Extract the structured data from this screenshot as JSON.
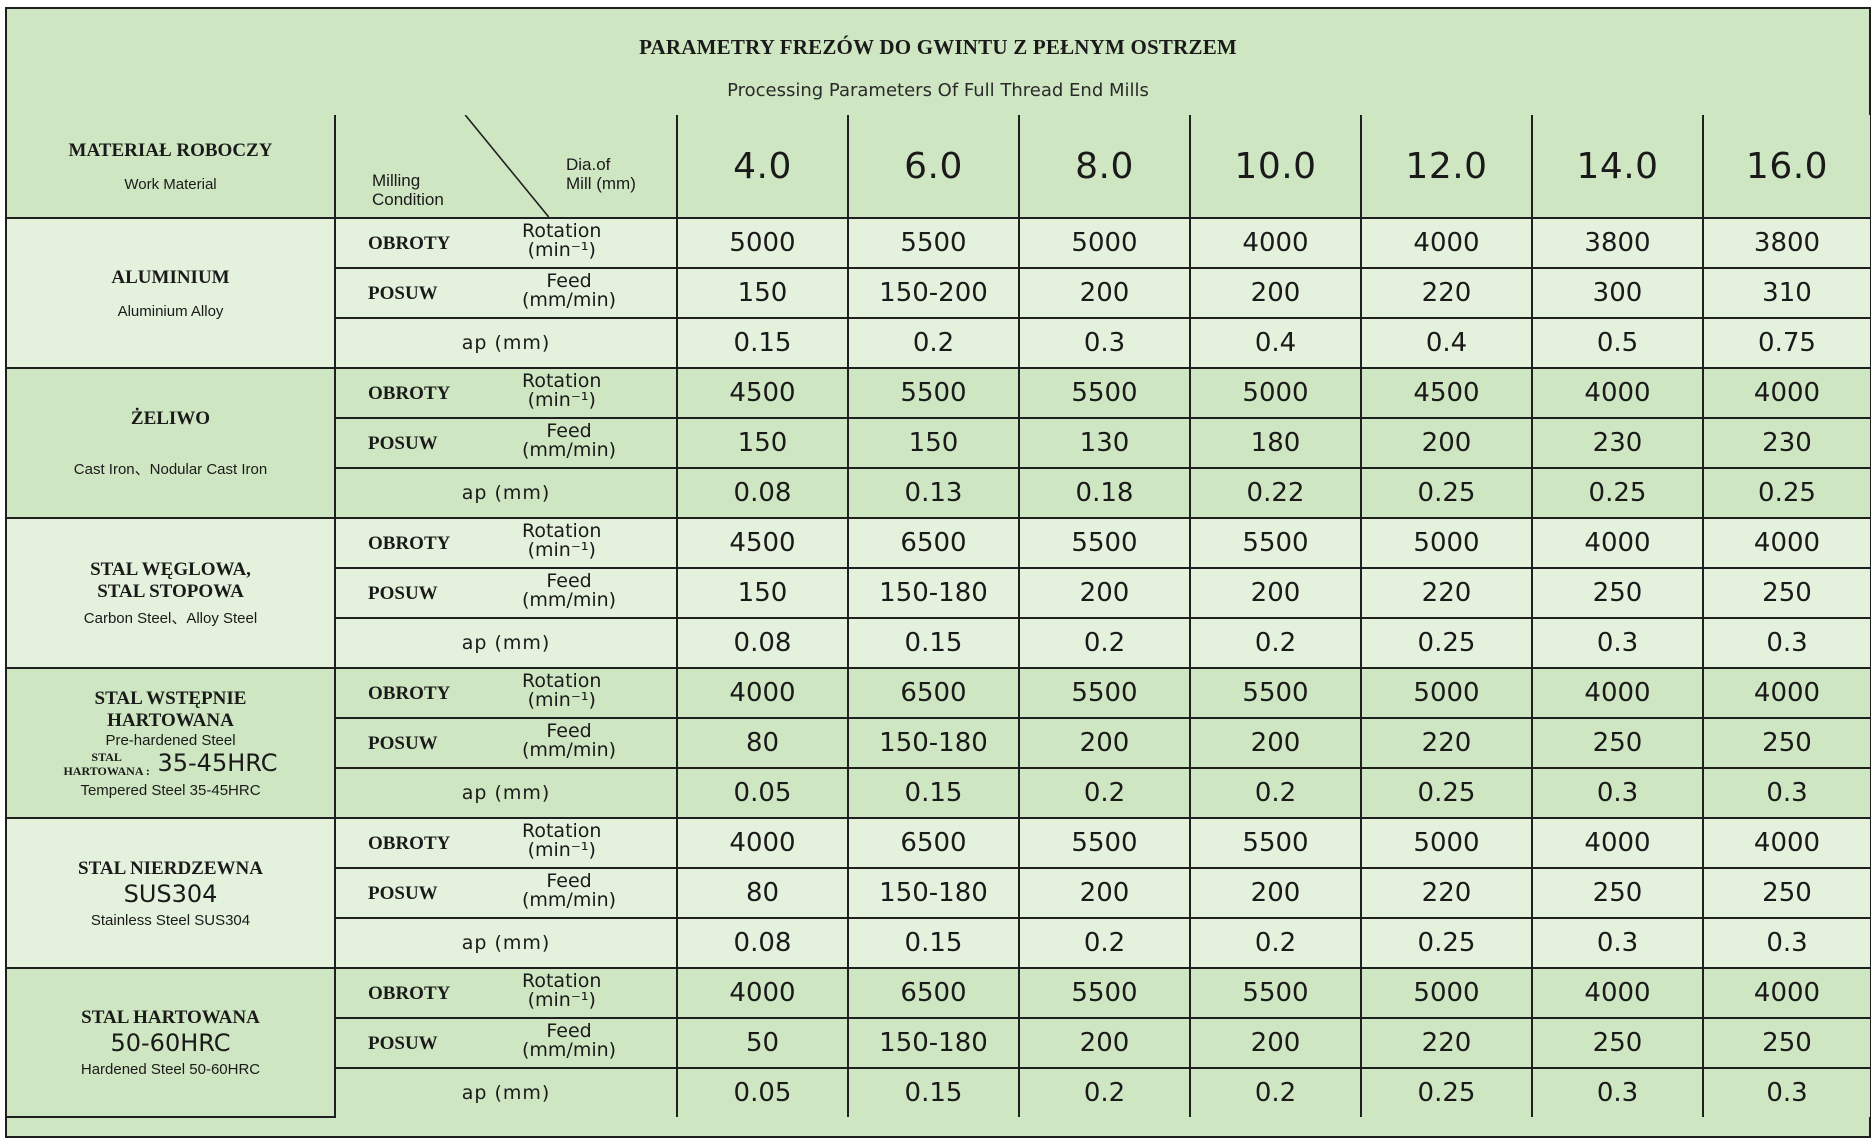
{
  "title": "PARAMETRY FREZÓW DO GWINTU Z PEŁNYM OSTRZEM",
  "subtitle": "Processing Parameters Of Full Thread End Mills",
  "header": {
    "material_pl": "MATERIAŁ ROBOCZY",
    "material_en": "Work Material",
    "condition_label_1": "Milling",
    "condition_label_2": "Condition",
    "dia_label_1": "Dia.of",
    "dia_label_2": "Mill (mm)",
    "diameters": [
      "4.0",
      "6.0",
      "8.0",
      "10.0",
      "12.0",
      "14.0",
      "16.0"
    ]
  },
  "params": {
    "rotation_pl": "OBROTY",
    "rotation_en_1": "Rotation",
    "rotation_en_2": "(min⁻¹)",
    "feed_pl": "POSUW",
    "feed_en_1": "Feed",
    "feed_en_2": "(mm/min)",
    "ap": "ap (mm)"
  },
  "materials": [
    {
      "name_pl": "ALUMINIUM",
      "name_pl_2": "",
      "big": "",
      "name_en": "Aluminium Alloy",
      "rotation": [
        "5000",
        "5500",
        "5000",
        "4000",
        "4000",
        "3800",
        "3800"
      ],
      "feed": [
        "150",
        "150-200",
        "200",
        "200",
        "220",
        "300",
        "310"
      ],
      "ap": [
        "0.15",
        "0.2",
        "0.3",
        "0.4",
        "0.4",
        "0.5",
        "0.75"
      ]
    },
    {
      "name_pl": "ŻELIWO",
      "name_pl_2": "",
      "big": "",
      "name_en": "Cast Iron、Nodular Cast Iron",
      "rotation": [
        "4500",
        "5500",
        "5500",
        "5000",
        "4500",
        "4000",
        "4000"
      ],
      "feed": [
        "150",
        "150",
        "130",
        "180",
        "200",
        "230",
        "230"
      ],
      "ap": [
        "0.08",
        "0.13",
        "0.18",
        "0.22",
        "0.25",
        "0.25",
        "0.25"
      ]
    },
    {
      "name_pl": "STAL WĘGLOWA,",
      "name_pl_2": "STAL STOPOWA",
      "big": "",
      "name_en": "Carbon Steel、Alloy Steel",
      "rotation": [
        "4500",
        "6500",
        "5500",
        "5500",
        "5000",
        "4000",
        "4000"
      ],
      "feed": [
        "150",
        "150-180",
        "200",
        "200",
        "220",
        "250",
        "250"
      ],
      "ap": [
        "0.08",
        "0.15",
        "0.2",
        "0.2",
        "0.25",
        "0.3",
        "0.3"
      ]
    },
    {
      "name_pl": "STAL WSTĘPNIE",
      "name_pl_2": "HARTOWANA",
      "name_en_top": "Pre-hardened Steel",
      "small_pl_1": "STAL",
      "small_pl_2": "HARTOWANA :",
      "big": "35-45HRC",
      "name_en": "Tempered Steel 35-45HRC",
      "rotation": [
        "4000",
        "6500",
        "5500",
        "5500",
        "5000",
        "4000",
        "4000"
      ],
      "feed": [
        "80",
        "150-180",
        "200",
        "200",
        "220",
        "250",
        "250"
      ],
      "ap": [
        "0.05",
        "0.15",
        "0.2",
        "0.2",
        "0.25",
        "0.3",
        "0.3"
      ]
    },
    {
      "name_pl": "STAL   NIERDZEWNA",
      "name_pl_2": "",
      "big": "SUS304",
      "name_en": "Stainless Steel SUS304",
      "rotation": [
        "4000",
        "6500",
        "5500",
        "5500",
        "5000",
        "4000",
        "4000"
      ],
      "feed": [
        "80",
        "150-180",
        "200",
        "200",
        "220",
        "250",
        "250"
      ],
      "ap": [
        "0.08",
        "0.15",
        "0.2",
        "0.2",
        "0.25",
        "0.3",
        "0.3"
      ]
    },
    {
      "name_pl": "STAL HARTOWANA",
      "name_pl_2": "",
      "big": "50-60HRC",
      "name_en": "Hardened Steel 50-60HRC",
      "rotation": [
        "4000",
        "6500",
        "5500",
        "5500",
        "5000",
        "4000",
        "4000"
      ],
      "feed": [
        "50",
        "150-180",
        "200",
        "200",
        "220",
        "250",
        "250"
      ],
      "ap": [
        "0.05",
        "0.15",
        "0.2",
        "0.2",
        "0.25",
        "0.3",
        "0.3"
      ]
    }
  ]
}
